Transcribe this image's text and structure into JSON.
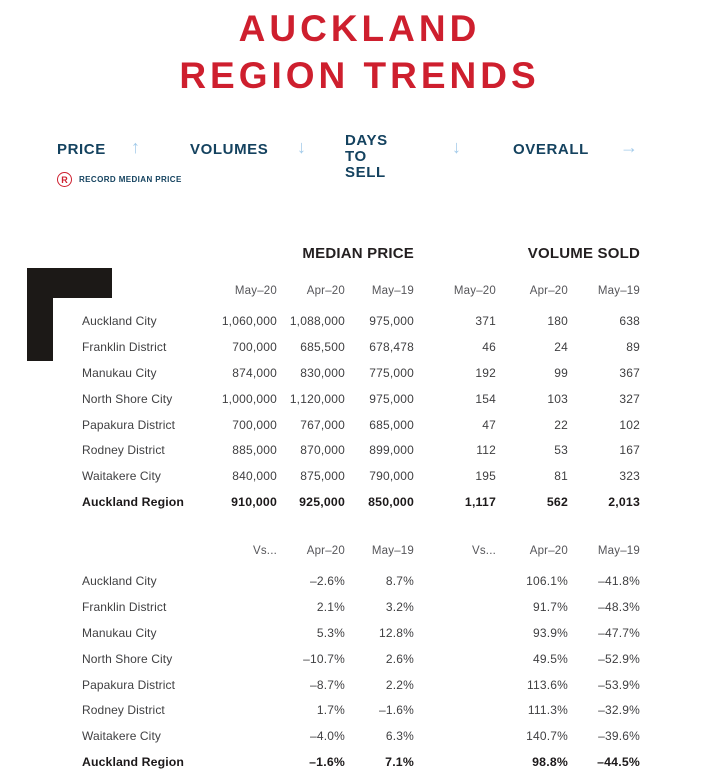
{
  "title": {
    "line1": "AUCKLAND",
    "line2": "REGION TRENDS"
  },
  "nav": {
    "items": [
      {
        "label": "PRICE",
        "arrow": "up",
        "arrow_glyph": "↑"
      },
      {
        "label": "VOLUMES",
        "arrow": "down",
        "arrow_glyph": "↓"
      },
      {
        "label": "DAYS TO SELL",
        "arrow": "down",
        "arrow_glyph": "↓"
      },
      {
        "label": "OVERALL",
        "arrow": "right",
        "arrow_glyph": "→"
      }
    ]
  },
  "legend": {
    "symbol": "R",
    "label": "RECORD MEDIAN PRICE"
  },
  "sections": {
    "median_price": "MEDIAN PRICE",
    "volume_sold": "VOLUME SOLD"
  },
  "table1": {
    "columns": [
      "May–20",
      "Apr–20",
      "May–19",
      "May–20",
      "Apr–20",
      "May–19"
    ],
    "rows": [
      {
        "name": "Auckland City",
        "values": [
          "1,060,000",
          "1,088,000",
          "975,000",
          "371",
          "180",
          "638"
        ],
        "bold": false
      },
      {
        "name": "Franklin District",
        "values": [
          "700,000",
          "685,500",
          "678,478",
          "46",
          "24",
          "89"
        ],
        "bold": false
      },
      {
        "name": "Manukau City",
        "values": [
          "874,000",
          "830,000",
          "775,000",
          "192",
          "99",
          "367"
        ],
        "bold": false
      },
      {
        "name": "North Shore City",
        "values": [
          "1,000,000",
          "1,120,000",
          "975,000",
          "154",
          "103",
          "327"
        ],
        "bold": false
      },
      {
        "name": "Papakura District",
        "values": [
          "700,000",
          "767,000",
          "685,000",
          "47",
          "22",
          "102"
        ],
        "bold": false
      },
      {
        "name": "Rodney District",
        "values": [
          "885,000",
          "870,000",
          "899,000",
          "112",
          "53",
          "167"
        ],
        "bold": false
      },
      {
        "name": "Waitakere City",
        "values": [
          "840,000",
          "875,000",
          "790,000",
          "195",
          "81",
          "323"
        ],
        "bold": false
      },
      {
        "name": "Auckland Region",
        "values": [
          "910,000",
          "925,000",
          "850,000",
          "1,117",
          "562",
          "2,013"
        ],
        "bold": true
      }
    ]
  },
  "table2": {
    "columns": [
      "Vs...",
      "Apr–20",
      "May–19",
      "Vs...",
      "Apr–20",
      "May–19"
    ],
    "rows": [
      {
        "name": "Auckland City",
        "values": [
          "",
          "–2.6%",
          "8.7%",
          "",
          "106.1%",
          "–41.8%"
        ],
        "bold": false
      },
      {
        "name": "Franklin District",
        "values": [
          "",
          "2.1%",
          "3.2%",
          "",
          "91.7%",
          "–48.3%"
        ],
        "bold": false
      },
      {
        "name": "Manukau City",
        "values": [
          "",
          "5.3%",
          "12.8%",
          "",
          "93.9%",
          "–47.7%"
        ],
        "bold": false
      },
      {
        "name": "North Shore City",
        "values": [
          "",
          "–10.7%",
          "2.6%",
          "",
          "49.5%",
          "–52.9%"
        ],
        "bold": false
      },
      {
        "name": "Papakura District",
        "values": [
          "",
          "–8.7%",
          "2.2%",
          "",
          "113.6%",
          "–53.9%"
        ],
        "bold": false
      },
      {
        "name": "Rodney District",
        "values": [
          "",
          "1.7%",
          "–1.6%",
          "",
          "111.3%",
          "–32.9%"
        ],
        "bold": false
      },
      {
        "name": "Waitakere City",
        "values": [
          "",
          "–4.0%",
          "6.3%",
          "",
          "140.7%",
          "–39.6%"
        ],
        "bold": false
      },
      {
        "name": "Auckland Region",
        "values": [
          "",
          "–1.6%",
          "7.1%",
          "",
          "98.8%",
          "–44.5%"
        ],
        "bold": true
      }
    ]
  },
  "colors": {
    "title_red": "#ce1f2e",
    "navy": "#14425f",
    "arrow_blue": "#a3cbea",
    "text_dark": "#3f3f41",
    "graphic_black": "#1c1917"
  }
}
